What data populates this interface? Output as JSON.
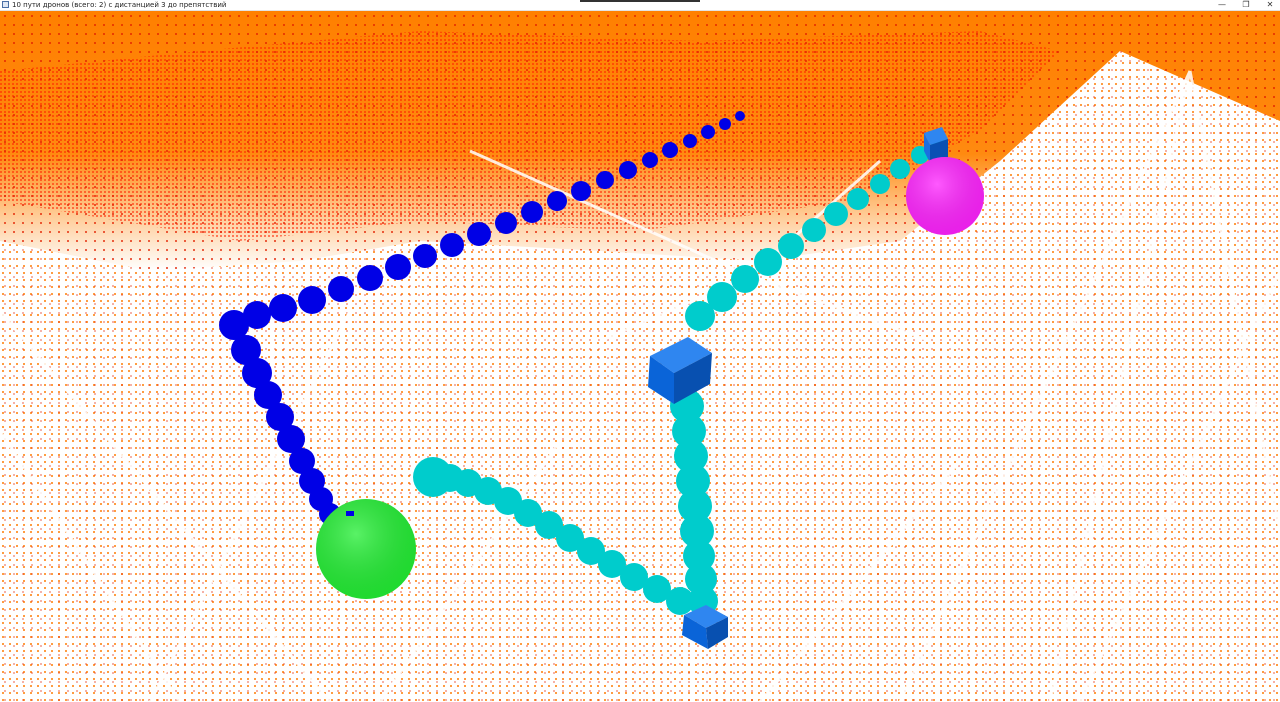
{
  "window": {
    "title": "10 пути дронов (всего: 2) с дистанцией 3 до препятствий",
    "minimize_glyph": "—",
    "maximize_glyph": "❐",
    "close_glyph": "✕"
  },
  "scene": {
    "background_color": "#ffffff",
    "obstacle_colors": [
      "#ff8000",
      "#ff1a00"
    ],
    "grid_dot_color": "#ff8a1f",
    "path_colors": {
      "drone_1": "#0000e6",
      "drone_2": "#00cccc"
    },
    "start_marker_color": "#22ee33",
    "goal_marker_color": "#ff22ff",
    "waypoint_cube_color": "#0a64d8"
  }
}
